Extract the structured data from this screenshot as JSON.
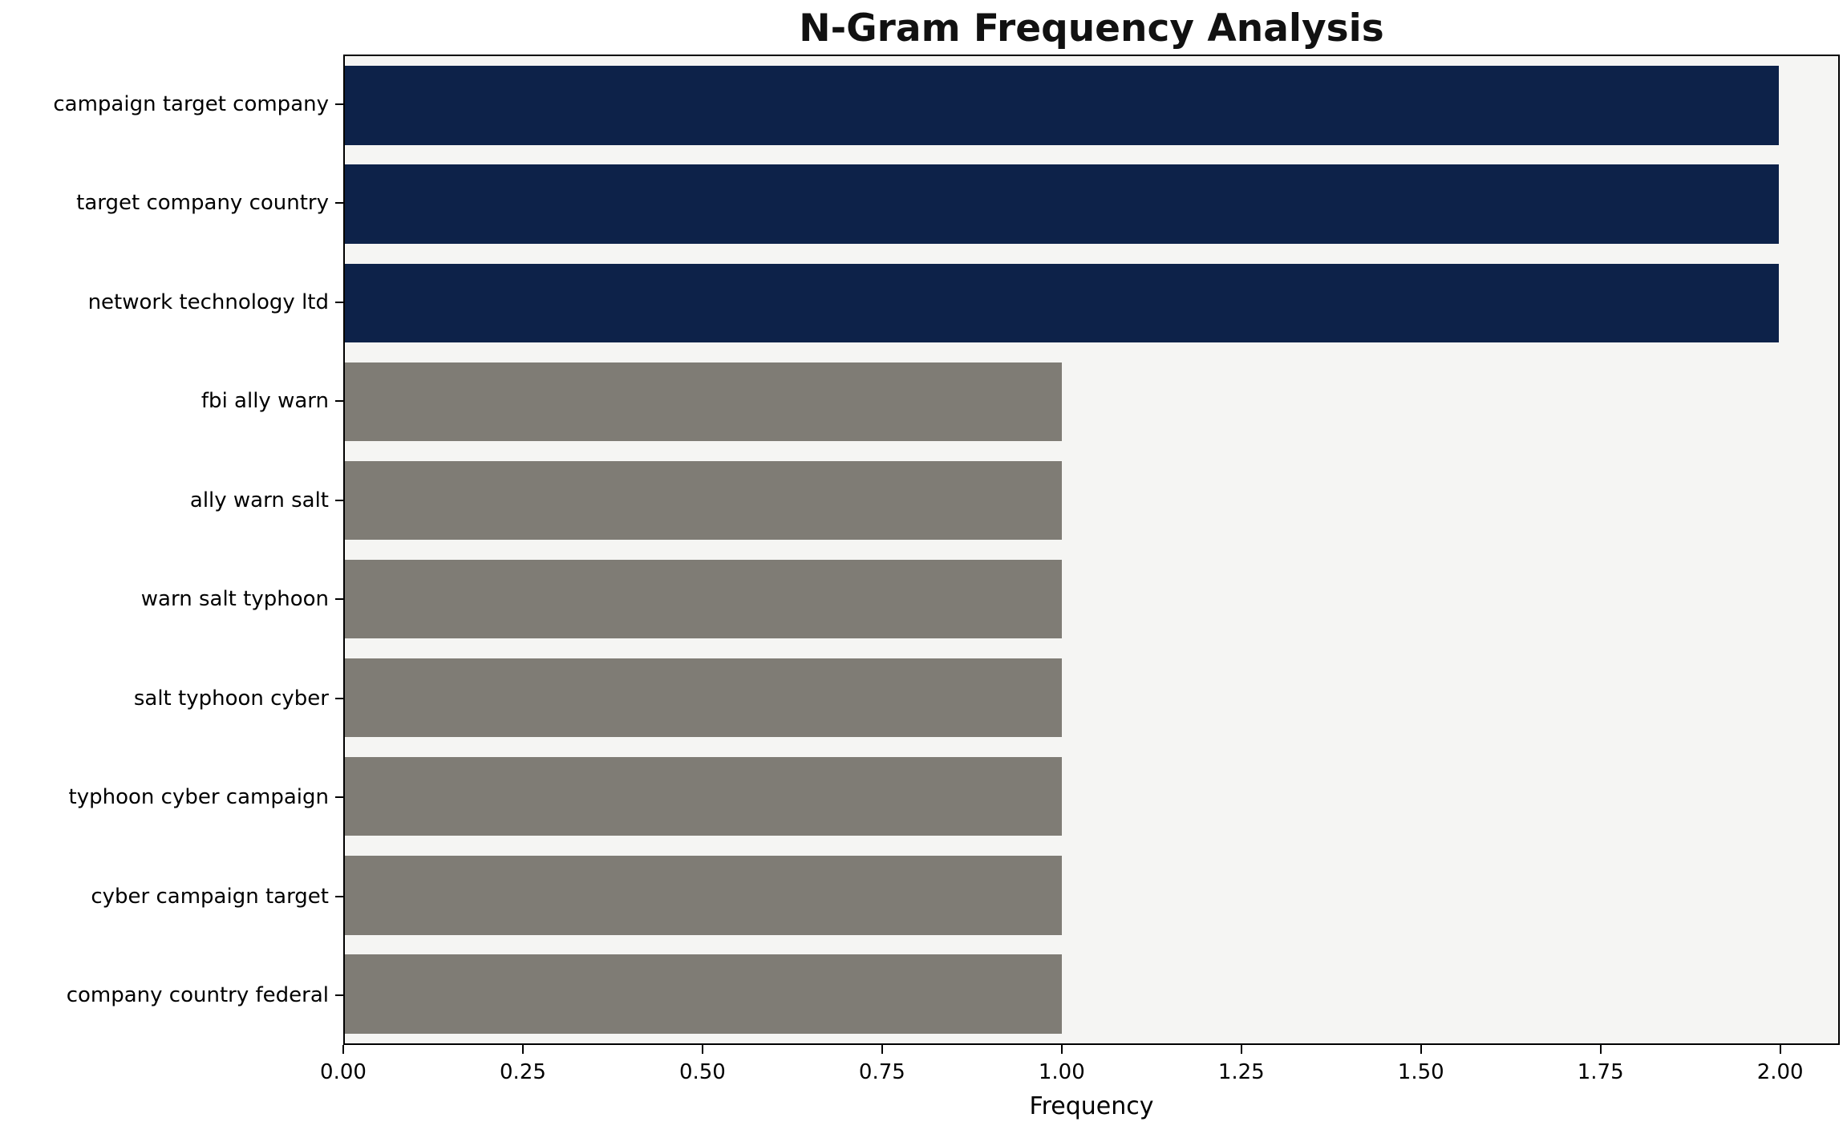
{
  "chart_data": {
    "type": "bar",
    "orientation": "horizontal",
    "title": "N-Gram Frequency Analysis",
    "xlabel": "Frequency",
    "ylabel": "",
    "categories": [
      "campaign target company",
      "target company country",
      "network technology ltd",
      "fbi ally warn",
      "ally warn salt",
      "warn salt typhoon",
      "salt typhoon cyber",
      "typhoon cyber campaign",
      "cyber campaign target",
      "company country federal"
    ],
    "values": [
      2,
      2,
      2,
      1,
      1,
      1,
      1,
      1,
      1,
      1
    ],
    "bar_colors": [
      "#0d2249",
      "#0d2249",
      "#0d2249",
      "#7f7c75",
      "#7f7c75",
      "#7f7c75",
      "#7f7c75",
      "#7f7c75",
      "#7f7c75",
      "#7f7c75"
    ],
    "xlim": [
      0,
      2.083
    ],
    "xticks": [
      0,
      0.25,
      0.5,
      0.75,
      1.0,
      1.25,
      1.5,
      1.75,
      2.0
    ],
    "xtick_labels": [
      "0.00",
      "0.25",
      "0.50",
      "0.75",
      "1.00",
      "1.25",
      "1.50",
      "1.75",
      "2.00"
    ],
    "grid": false,
    "legend": "none",
    "colors": {
      "highlight": "#0d2249",
      "default": "#7f7c75",
      "plot_background": "#f5f5f3",
      "axis": "#000000",
      "figure_background": "#ffffff"
    },
    "bar_height_fraction": 0.8
  }
}
